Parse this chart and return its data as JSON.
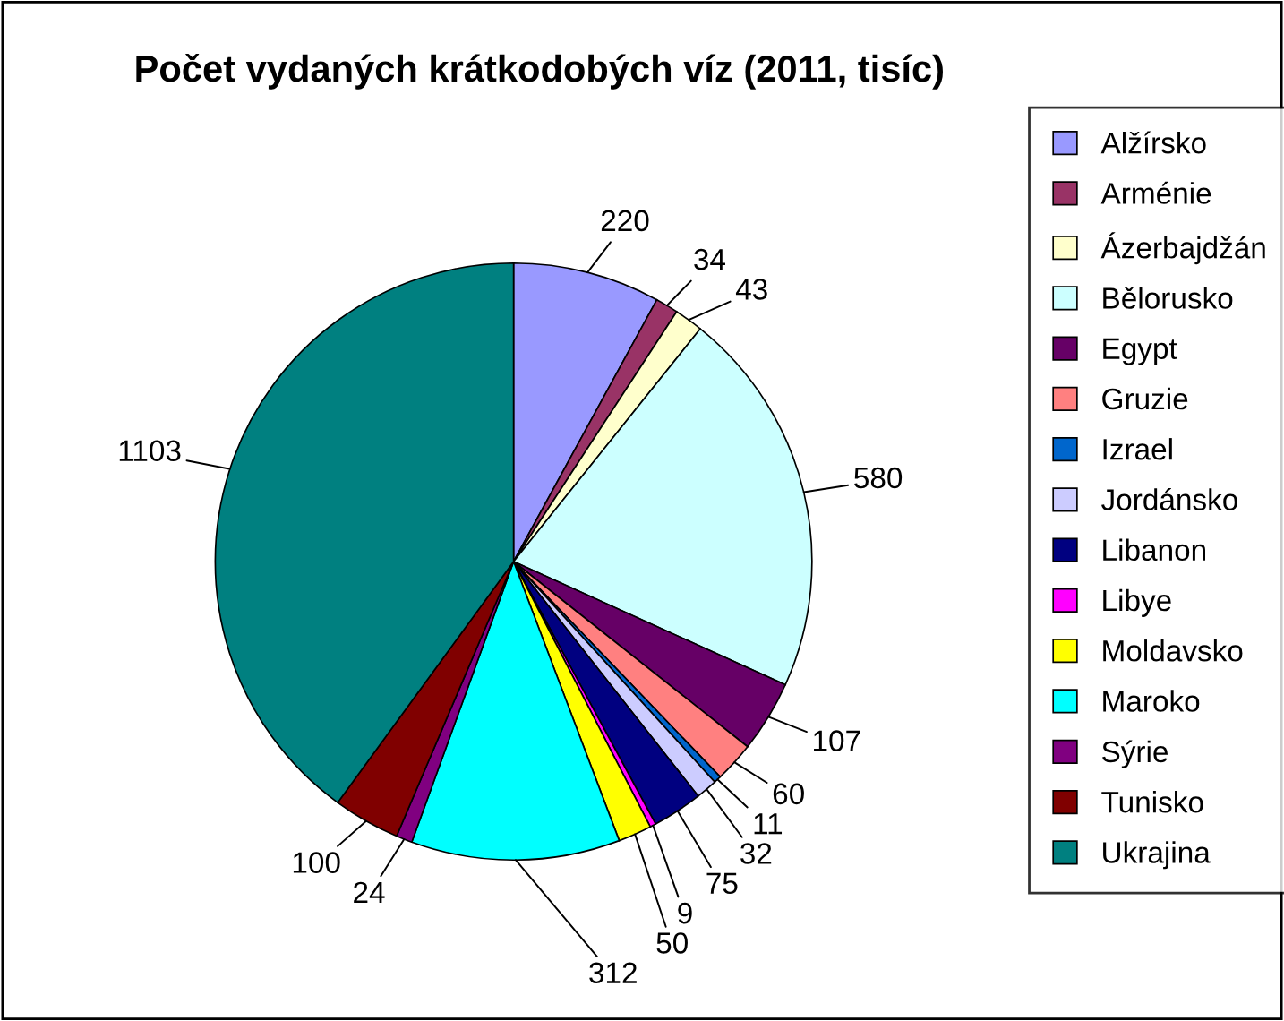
{
  "chart_data": {
    "type": "pie",
    "title": "Počet vydaných krátkodobých víz (2011, tisíc)",
    "categories": [
      "Alžírsko",
      "Arménie",
      "Ázerbajdžán",
      "Bělorusko",
      "Egypt",
      "Gruzie",
      "Izrael",
      "Jordánsko",
      "Libanon",
      "Libye",
      "Moldavsko",
      "Maroko",
      "Sýrie",
      "Tunisko",
      "Ukrajina"
    ],
    "values": [
      220,
      34,
      43,
      580,
      107,
      60,
      11,
      32,
      75,
      9,
      50,
      312,
      24,
      100,
      1103
    ],
    "colors": [
      "#9999ff",
      "#993366",
      "#ffffcc",
      "#ccffff",
      "#660066",
      "#ff8080",
      "#0066cc",
      "#ccccff",
      "#000080",
      "#ff00ff",
      "#ffff00",
      "#00ffff",
      "#800080",
      "#800000",
      "#008080"
    ],
    "data_labels": true,
    "legend": "right"
  }
}
